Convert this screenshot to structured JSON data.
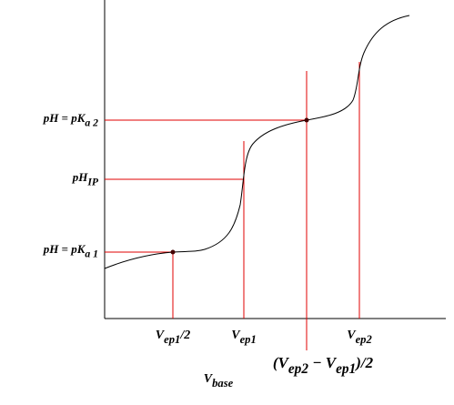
{
  "y_labels": [
    {
      "parts": [
        {
          "t": "pH = pK"
        },
        {
          "t": "a 2",
          "sub": true
        }
      ]
    },
    {
      "parts": [
        {
          "t": "pH"
        },
        {
          "t": "IP",
          "sub": true
        }
      ]
    },
    {
      "parts": [
        {
          "t": "pH = pK"
        },
        {
          "t": "a 1",
          "sub": true
        }
      ]
    }
  ],
  "x_labels": [
    {
      "parts": [
        {
          "t": "V"
        },
        {
          "t": "ep1",
          "sub": true
        },
        {
          "t": "/2"
        }
      ]
    },
    {
      "parts": [
        {
          "t": "V"
        },
        {
          "t": "ep1",
          "sub": true
        }
      ]
    },
    {
      "parts": [
        {
          "t": "V"
        },
        {
          "t": "ep2",
          "sub": true
        }
      ]
    },
    {
      "parts": [
        {
          "t": "(V"
        },
        {
          "t": "ep2",
          "sub": true
        },
        {
          "t": " − V"
        },
        {
          "t": "ep1",
          "sub": true
        },
        {
          "t": ")/2"
        }
      ]
    }
  ],
  "axis_label": {
    "parts": [
      {
        "t": "V"
      },
      {
        "t": "base",
        "sub": true
      }
    ]
  }
}
